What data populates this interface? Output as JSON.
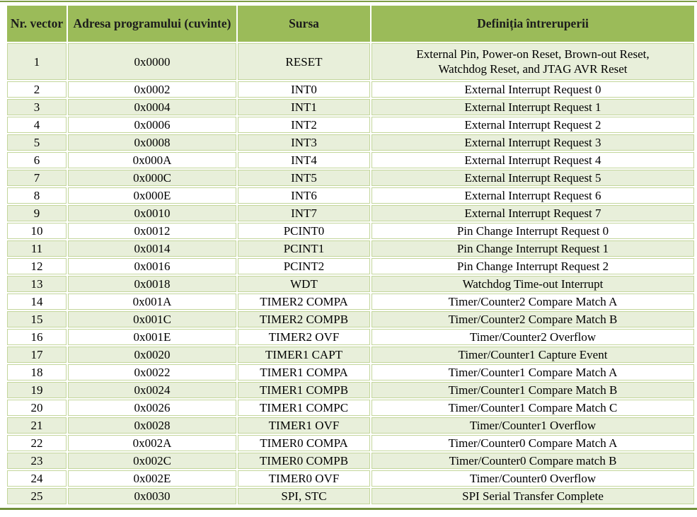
{
  "colors": {
    "header_bg": "#9bbb59",
    "stripe_bg": "#e8efda",
    "cell_border": "#c3d69b",
    "top_rule": "#7d9c45",
    "bottom_rule": "#71903b",
    "text": "#000000"
  },
  "table": {
    "columns": [
      "Nr. vector",
      "Adresa programului (cuvinte)",
      "Sursa",
      "Definiția întreruperii"
    ],
    "rows": [
      [
        "1",
        "0x0000",
        "RESET",
        "External Pin, Power-on Reset, Brown-out Reset,\nWatchdog Reset, and JTAG AVR Reset"
      ],
      [
        "2",
        "0x0002",
        "INT0",
        "External Interrupt Request 0"
      ],
      [
        "3",
        "0x0004",
        "INT1",
        "External Interrupt Request 1"
      ],
      [
        "4",
        "0x0006",
        "INT2",
        "External Interrupt Request 2"
      ],
      [
        "5",
        "0x0008",
        "INT3",
        "External Interrupt Request 3"
      ],
      [
        "6",
        "0x000A",
        "INT4",
        "External Interrupt Request 4"
      ],
      [
        "7",
        "0x000C",
        "INT5",
        "External Interrupt Request 5"
      ],
      [
        "8",
        "0x000E",
        "INT6",
        "External Interrupt Request 6"
      ],
      [
        "9",
        "0x0010",
        "INT7",
        "External Interrupt Request 7"
      ],
      [
        "10",
        "0x0012",
        "PCINT0",
        "Pin Change Interrupt Request 0"
      ],
      [
        "11",
        "0x0014",
        "PCINT1",
        "Pin Change Interrupt Request 1"
      ],
      [
        "12",
        "0x0016",
        "PCINT2",
        "Pin Change Interrupt Request 2"
      ],
      [
        "13",
        "0x0018",
        "WDT",
        "Watchdog Time-out Interrupt"
      ],
      [
        "14",
        "0x001A",
        "TIMER2 COMPA",
        "Timer/Counter2 Compare Match A"
      ],
      [
        "15",
        "0x001C",
        "TIMER2 COMPB",
        "Timer/Counter2 Compare Match B"
      ],
      [
        "16",
        "0x001E",
        "TIMER2 OVF",
        "Timer/Counter2 Overflow"
      ],
      [
        "17",
        "0x0020",
        "TIMER1 CAPT",
        "Timer/Counter1 Capture Event"
      ],
      [
        "18",
        "0x0022",
        "TIMER1 COMPA",
        "Timer/Counter1 Compare Match A"
      ],
      [
        "19",
        "0x0024",
        "TIMER1 COMPB",
        "Timer/Counter1 Compare Match B"
      ],
      [
        "20",
        "0x0026",
        "TIMER1 COMPC",
        "Timer/Counter1 Compare Match C"
      ],
      [
        "21",
        "0x0028",
        "TIMER1 OVF",
        "Timer/Counter1 Overflow"
      ],
      [
        "22",
        "0x002A",
        "TIMER0 COMPA",
        "Timer/Counter0 Compare Match A"
      ],
      [
        "23",
        "0x002C",
        "TIMER0 COMPB",
        "Timer/Counter0 Compare match B"
      ],
      [
        "24",
        "0x002E",
        "TIMER0 OVF",
        "Timer/Counter0 Overflow"
      ],
      [
        "25",
        "0x0030",
        "SPI, STC",
        "SPI Serial Transfer Complete"
      ]
    ]
  }
}
